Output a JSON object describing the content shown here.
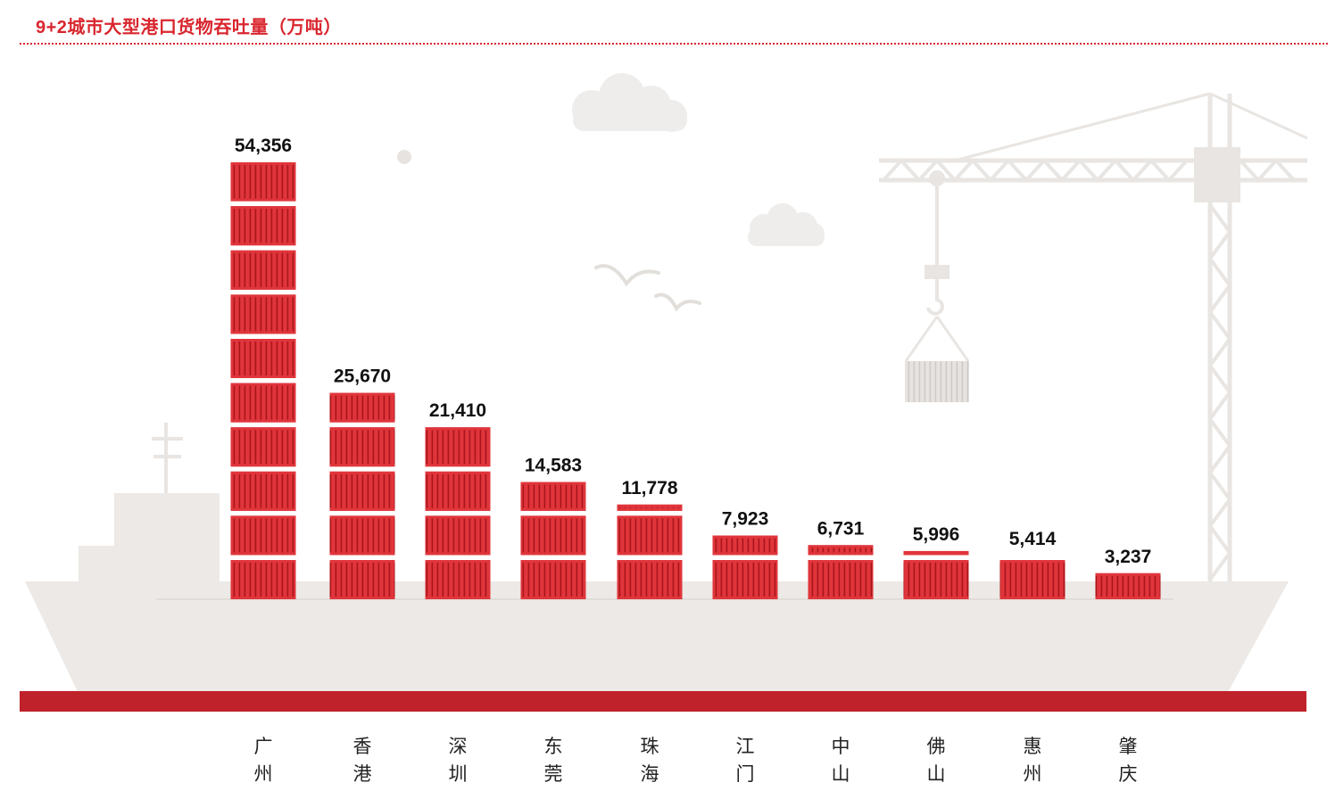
{
  "title": "9+2城市大型港口货物吞吐量（万吨）",
  "colors": {
    "accent": "#d9262e",
    "container": "#e0353b",
    "container_rib": "#a8151c",
    "ship": "#ece9e6",
    "ship_shadow": "#e2dfdb",
    "base_band": "#c0222c",
    "crane": "#e8e5e2"
  },
  "chart_data": {
    "type": "bar",
    "title": "9+2城市大型港口货物吞吐量（万吨）",
    "unit": "万吨",
    "categories": [
      "广州",
      "香港",
      "深圳",
      "东莞",
      "珠海",
      "江门",
      "中山",
      "佛山",
      "惠州",
      "肇庆"
    ],
    "values": [
      54356,
      25670,
      21410,
      14583,
      11778,
      7923,
      6731,
      5996,
      5414,
      3237
    ],
    "value_labels": [
      "54,356",
      "25,670",
      "21,410",
      "14,583",
      "11,778",
      "7,923",
      "6,731",
      "5,996",
      "5,414",
      "3,237"
    ],
    "xlabel": "",
    "ylabel": "",
    "grid": false,
    "legend": "none"
  }
}
